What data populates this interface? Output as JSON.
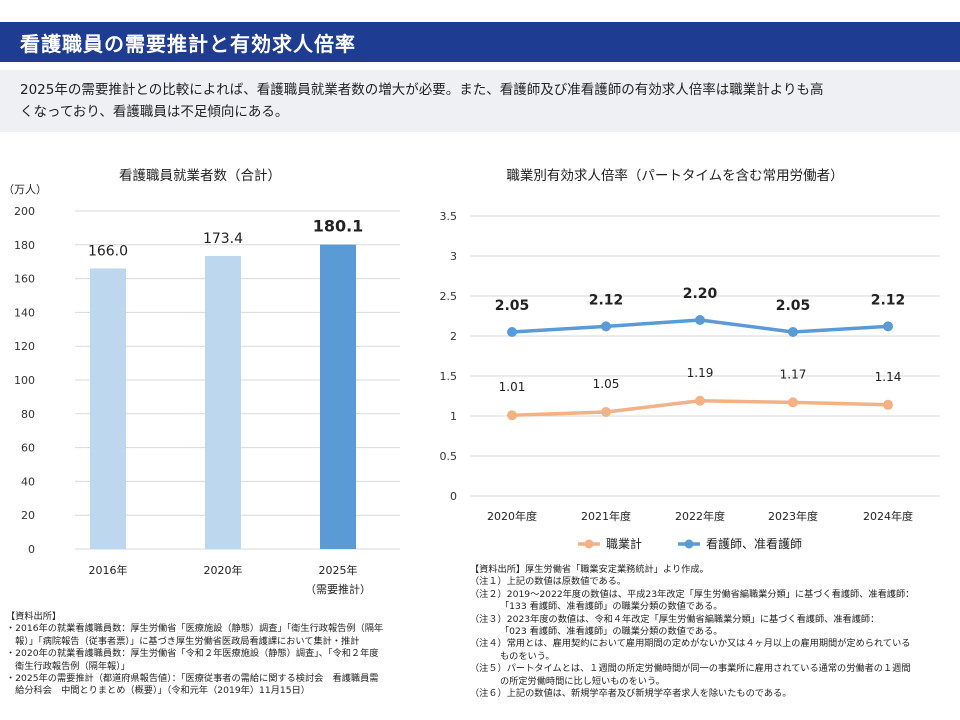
{
  "header": {
    "title": "看護職員の需要推計と有効求人倍率",
    "summary_line1": "2025年の需要推計との比較によれば、看護職員就業者数の増大が必要。また、看護師及び准看護師の有効求人倍率は職業計よりも高",
    "summary_line2": "くなっており、看護職員は不足傾向にある。"
  },
  "colors": {
    "title_bar": "#1e3c91",
    "bar_light": "#bdd7ee",
    "bar_dark": "#5b9bd5",
    "line_nurse": "#5b9bd5",
    "line_total": "#f4b183"
  },
  "chart_data": [
    {
      "type": "bar",
      "title": "看護職員就業者数（合計）",
      "ylabel": "（万人）",
      "categories": [
        "2016年",
        "2020年",
        "2025年"
      ],
      "category_sublabels": [
        "",
        "",
        "（需要推計）"
      ],
      "values": [
        166.0,
        173.4,
        180.1
      ],
      "value_labels": [
        "166.0",
        "173.4",
        "180.1"
      ],
      "bar_colors": [
        "#bdd7ee",
        "#bdd7ee",
        "#5b9bd5"
      ],
      "ylim": [
        0,
        200
      ],
      "yticks": [
        0,
        20,
        40,
        60,
        80,
        100,
        120,
        140,
        160,
        180,
        200
      ],
      "grid": true
    },
    {
      "type": "line",
      "title": "職業別有効求人倍率（パートタイムを含む常用労働者）",
      "categories": [
        "2020年度",
        "2021年度",
        "2022年度",
        "2023年度",
        "2024年度"
      ],
      "ylim": [
        0,
        3.5
      ],
      "yticks": [
        "0",
        "0.5",
        "1",
        "1.5",
        "2",
        "2.5",
        "3",
        "3.5"
      ],
      "grid": true,
      "legend_position": "bottom",
      "series": [
        {
          "name": "職業計",
          "color": "#f4b183",
          "values": [
            1.01,
            1.05,
            1.19,
            1.17,
            1.14
          ],
          "labels": [
            "1.01",
            "1.05",
            "1.19",
            "1.17",
            "1.14"
          ]
        },
        {
          "name": "看護師、准看護師",
          "color": "#5b9bd5",
          "values": [
            2.05,
            2.12,
            2.2,
            2.05,
            2.12
          ],
          "labels": [
            "2.05",
            "2.12",
            "2.20",
            "2.05",
            "2.12"
          ]
        }
      ]
    }
  ],
  "sources_left": [
    "【資料出所】",
    "・2016年の就業看護職員数：厚生労働省「医療施設（静態）調査」「衛生行政報告例（隔年",
    "　報）」「病院報告（従事者票）」に基づき厚生労働省医政局看護課において集計・推計",
    "・2020年の就業看護職員数：厚生労働省「令和２年医療施設（静態）調査」、「令和２年度",
    "　衛生行政報告例（隔年報）」",
    "・2025年の需要推計（都道府県報告値）：「医療従事者の需給に関する検討会　看護職員需",
    "　給分科会　中間とりまとめ（概要）」（令和元年（2019年）11月15日）"
  ],
  "sources_right": [
    "【資料出所】厚生労働省「職業安定業務統計」より作成。",
    "（注１）上記の数値は原数値である。",
    "（注２）2019～2022年度の数値は、平成23年改定「厚生労働省編職業分類」に基づく看護師、准看護師：",
    "「133 看護師、准看護師」の職業分類の数値である。",
    "（注３）2023年度の数値は、令和４年改定「厚生労働省編職業分類」に基づく看護師、准看護師：",
    "「023 看護師、准看護師」の職業分類の数値である。",
    "（注４）常用とは、雇用契約において雇用期間の定めがないか又は４ヶ月以上の雇用期間が定められている",
    "ものをいう。",
    "（注５）パートタイムとは、１週間の所定労働時間が同一の事業所に雇用されている通常の労働者の１週間",
    "の所定労働時間に比し短いものをいう。",
    "（注６）上記の数値は、新規学卒者及び新規学卒者求人を除いたものである。"
  ]
}
